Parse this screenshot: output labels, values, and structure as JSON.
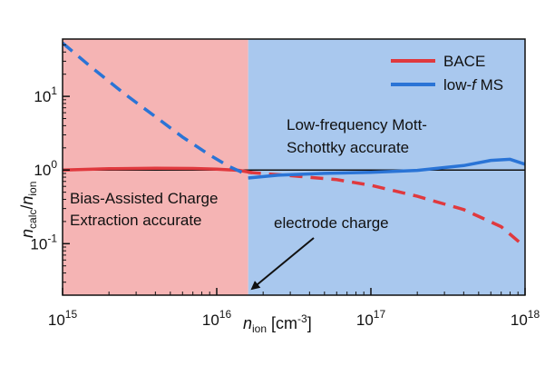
{
  "chart_data": {
    "type": "line",
    "x_scale": "log",
    "y_scale": "log",
    "xlim": [
      1000000000000000.0,
      1e+18
    ],
    "ylim": [
      0.02,
      60
    ],
    "x_ticks": [
      {
        "value": 1000000000000000.0,
        "base": "10",
        "exp": "15"
      },
      {
        "value": 1e+16,
        "base": "10",
        "exp": "16"
      },
      {
        "value": 1e+17,
        "base": "10",
        "exp": "17"
      },
      {
        "value": 1e+18,
        "base": "10",
        "exp": "18"
      }
    ],
    "y_ticks": [
      {
        "value": 0.1,
        "base": "10",
        "exp": "-1"
      },
      {
        "value": 1,
        "base": "10",
        "exp": "0"
      },
      {
        "value": 10,
        "base": "10",
        "exp": "1"
      }
    ],
    "xlabel": {
      "main": "n",
      "sub": "ion",
      "unit": " [cm",
      "sup": "-3",
      "close": "]"
    },
    "ylabel": {
      "n1": "n",
      "sub1": "calc",
      "slash": "/",
      "n2": "n",
      "sub2": "ion"
    },
    "regions": [
      {
        "name": "BACE-accurate region",
        "x_from": 1000000000000000.0,
        "x_to": 1.6e+16,
        "color": "#f5b4b4"
      },
      {
        "name": "low-f-MS-accurate region",
        "x_from": 1.6e+16,
        "x_to": 1e+18,
        "color": "#a9c8ee"
      }
    ],
    "reference_line": {
      "y": 1,
      "color": "#111111"
    },
    "series": [
      {
        "name": "BACE",
        "legend": "BACE",
        "color": "#e0393e",
        "solid": {
          "x": [
            1000000000000000.0,
            2000000000000000.0,
            4000000000000000.0,
            7000000000000000.0,
            1e+16,
            1.4e+16,
            1.7e+16
          ],
          "y": [
            1.0,
            1.04,
            1.06,
            1.05,
            1.03,
            0.99,
            0.92
          ]
        },
        "dashed": {
          "x": [
            1.6e+16,
            3e+16,
            6e+16,
            1e+17,
            2e+17,
            4e+17,
            7e+17,
            1e+18
          ],
          "y": [
            0.93,
            0.84,
            0.74,
            0.62,
            0.44,
            0.29,
            0.17,
            0.09
          ]
        }
      },
      {
        "name": "low-f MS",
        "legend_pre": "low-",
        "legend_italic": "f",
        "legend_post": " MS",
        "color": "#2a74d6",
        "dashed": {
          "x": [
            1000000000000000.0,
            1500000000000000.0,
            2500000000000000.0,
            4000000000000000.0,
            6000000000000000.0,
            9000000000000000.0,
            1.2e+16,
            1.6e+16
          ],
          "y": [
            53,
            26,
            11,
            5.3,
            2.8,
            1.6,
            1.12,
            0.85
          ]
        },
        "solid": {
          "x": [
            1.6e+16,
            2.5e+16,
            5e+16,
            1e+17,
            2e+17,
            4e+17,
            6e+17,
            8e+17,
            1e+18
          ],
          "y": [
            0.78,
            0.85,
            0.9,
            0.93,
            0.99,
            1.15,
            1.35,
            1.4,
            1.2
          ]
        }
      }
    ],
    "annotations": [
      {
        "name": "bace-region-label",
        "lines": [
          "Bias-Assisted Charge",
          "Extraction accurate"
        ]
      },
      {
        "name": "ms-region-label",
        "lines": [
          "Low-frequency Mott-",
          "Schottky accurate"
        ]
      },
      {
        "name": "electrode-charge-label",
        "lines": [
          "electrode charge"
        ],
        "arrow_to": {
          "x": 1.6e+16,
          "y": 0.02
        }
      }
    ]
  }
}
